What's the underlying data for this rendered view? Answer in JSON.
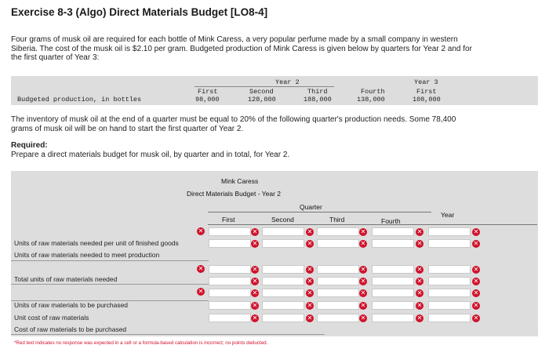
{
  "title": "Exercise 8-3 (Algo) Direct Materials Budget [LO8-4]",
  "intro_lines": [
    "Four grams of musk oil are required for each bottle of Mink Caress, a very popular perfume made by a small company in western",
    "Siberia. The cost of the musk oil is $2.10 per gram. Budgeted production of Mink Caress is given below by quarters for Year 2 and for",
    "the first quarter of Year 3:"
  ],
  "production_table": {
    "year2_label": "Year 2",
    "year3_label": "Year 3",
    "row_label": "Budgeted production, in bottles",
    "columns": [
      {
        "header": "First",
        "value": "98,000"
      },
      {
        "header": "Second",
        "value": "128,000"
      },
      {
        "header": "Third",
        "value": "188,000"
      },
      {
        "header": "Fourth",
        "value": "138,000"
      },
      {
        "header": "First",
        "value": "108,000"
      }
    ]
  },
  "inventory_lines": [
    "The inventory of musk oil at the end of a quarter must be equal to 20% of the following quarter's production needs. Some 78,400",
    "grams of musk oil will be on hand to start the first quarter of Year 2."
  ],
  "required_label": "Required:",
  "required_text": "Prepare a direct materials budget for musk oil, by quarter and in total, for Year 2.",
  "budget": {
    "company": "Mink Caress",
    "title": "Direct Materials Budget - Year 2",
    "quarter_label": "Quarter",
    "columns": [
      "First",
      "Second",
      "Third",
      "Fourth",
      "Year"
    ],
    "rows": [
      "Units of raw materials needed per unit of finished goods",
      "Units of raw materials needed to meet production",
      "Total units of raw materials needed",
      "Units of raw materials to be purchased",
      "Unit cost of raw materials",
      "Cost of raw materials to be purchased"
    ],
    "error_glyph": "✕"
  },
  "footnote": "*Red text indicates no response was expected in a cell or a formula-based calculation is incorrect; no points deducted.",
  "colors": {
    "error": "#d0112b",
    "band": "#dddddd"
  }
}
